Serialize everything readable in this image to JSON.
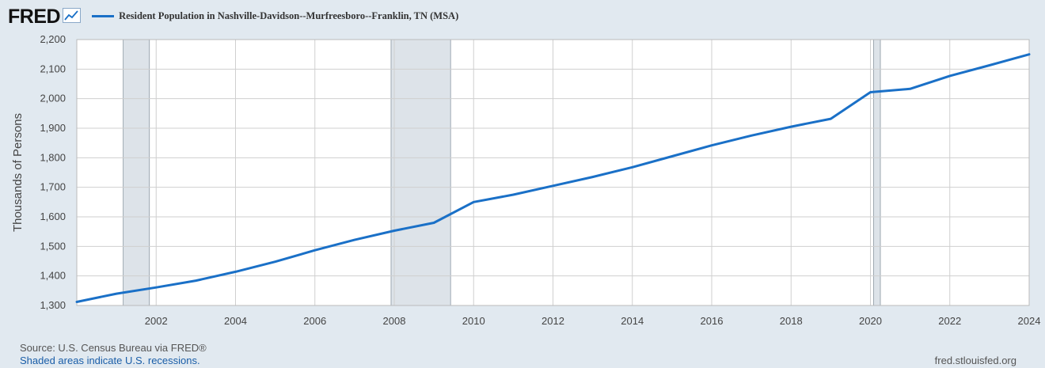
{
  "logo": {
    "text": "FRED",
    "icon": "line-chart-icon"
  },
  "colors": {
    "line": "#1a70c7",
    "recession": "#dde3e9",
    "grid": "#cfcfcf",
    "background": "#e1e9f0",
    "plot": "#ffffff"
  },
  "chart_data": {
    "type": "line",
    "ylabel": "Thousands of Persons",
    "xlim": [
      2000,
      2024
    ],
    "ylim": [
      1300,
      2200
    ],
    "y_ticks": [
      "1,300",
      "1,400",
      "1,500",
      "1,600",
      "1,700",
      "1,800",
      "1,900",
      "2,000",
      "2,100",
      "2,200"
    ],
    "x_ticks": [
      "2002",
      "2004",
      "2006",
      "2008",
      "2010",
      "2012",
      "2014",
      "2016",
      "2018",
      "2020",
      "2022",
      "2024"
    ],
    "grid": true,
    "legend_placement": "top-left",
    "recessions": [
      [
        2001.17,
        2001.83
      ],
      [
        2007.92,
        2009.42
      ],
      [
        2020.08,
        2020.25
      ]
    ],
    "series": [
      {
        "name": "Resident Population in Nashville-Davidson--Murfreesboro--Franklin, TN (MSA)",
        "x": [
          2000,
          2001,
          2002,
          2003,
          2004,
          2005,
          2006,
          2007,
          2008,
          2009,
          2010,
          2011,
          2012,
          2013,
          2014,
          2015,
          2016,
          2017,
          2018,
          2019,
          2020,
          2021,
          2022,
          2023,
          2024
        ],
        "values": [
          1312,
          1340,
          1361,
          1384,
          1414,
          1448,
          1487,
          1522,
          1553,
          1580,
          1650,
          1675,
          1705,
          1735,
          1768,
          1805,
          1842,
          1875,
          1905,
          1932,
          2022,
          2033,
          2077,
          2113,
          2150
        ]
      }
    ]
  },
  "footer": {
    "source": "Source: U.S. Census Bureau via FRED®",
    "recessions_note": "Shaded areas indicate U.S. recessions.",
    "url": "fred.stlouisfed.org"
  }
}
